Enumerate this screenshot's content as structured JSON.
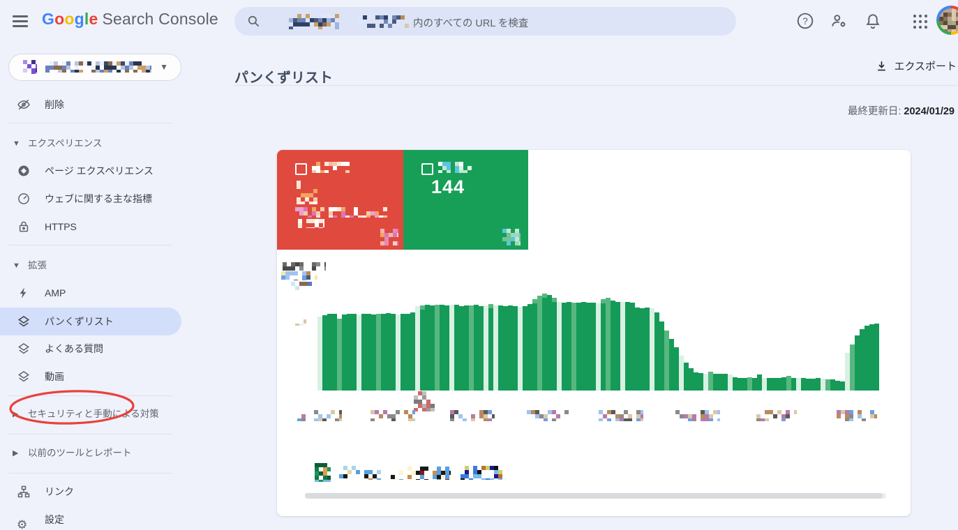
{
  "topbar": {
    "logo_letters": [
      {
        "ch": "G",
        "color": "#4285F4"
      },
      {
        "ch": "o",
        "color": "#EA4335"
      },
      {
        "ch": "o",
        "color": "#FBBC05"
      },
      {
        "ch": "g",
        "color": "#4285F4"
      },
      {
        "ch": "l",
        "color": "#34A853"
      },
      {
        "ch": "e",
        "color": "#EA4335"
      }
    ],
    "product_name": "Search Console",
    "search_placeholder_suffix": "内のすべての URL を検査",
    "search_property_redacted": true,
    "icons": [
      "help-icon",
      "user-settings-icon",
      "notifications-icon",
      "apps-grid-icon",
      "avatar"
    ]
  },
  "sidebar": {
    "property_name_redacted": true,
    "items": {
      "removals": "削除",
      "experience": "エクスペリエンス",
      "page_experience": "ページ エクスペリエンス",
      "core_web_vitals": "ウェブに関する主な指標",
      "https": "HTTPS",
      "enhancements": "拡張",
      "amp": "AMP",
      "breadcrumbs": "パンくずリスト",
      "faq": "よくある質問",
      "video": "動画",
      "security": "セキュリティと手動による対策",
      "legacy": "以前のツールとレポート",
      "links": "リンク",
      "settings": "設定"
    },
    "selected_item": "breadcrumbs",
    "annotation": {
      "shape": "hand-drawn ellipse around breadcrumbs item",
      "color": "#e8423a"
    }
  },
  "main": {
    "page_title": "パンくずリスト",
    "export_label": "エクスポート",
    "last_updated_label": "最終更新日:",
    "last_updated_value": "2024/01/29"
  },
  "cards": {
    "error": {
      "color": "#e0493d",
      "label_redacted": true,
      "count_redacted": true,
      "detail_text_redacted": true
    },
    "valid": {
      "color": "#179e57",
      "label_redacted": true,
      "count": "144"
    }
  },
  "chart_data": {
    "type": "bar",
    "description": "Daily count of valid breadcrumb items over time; chart legend, y-axis tick labels and x-axis date labels are pixelated (redacted) in the screenshot",
    "series": [
      {
        "name": "valid-items (legend pixelated)",
        "color": "#169a57"
      }
    ],
    "x_axis": {
      "tick_count": 8,
      "labels_redacted": true
    },
    "y_axis": {
      "labels_redacted": true
    },
    "baseline_y": 560,
    "bars": [
      [
        106,
        2
      ],
      [
        108,
        0
      ],
      [
        110,
        0
      ],
      [
        110,
        0
      ],
      [
        103,
        1
      ],
      [
        109,
        0
      ],
      [
        110,
        0
      ],
      [
        110,
        0
      ],
      [
        108,
        2
      ],
      [
        110,
        0
      ],
      [
        110,
        0
      ],
      [
        109,
        0
      ],
      [
        110,
        1
      ],
      [
        110,
        0
      ],
      [
        111,
        0
      ],
      [
        110,
        0
      ],
      [
        109,
        2
      ],
      [
        110,
        0
      ],
      [
        110,
        0
      ],
      [
        112,
        0
      ],
      [
        121,
        2
      ],
      [
        122,
        3
      ],
      [
        123,
        0
      ],
      [
        122,
        0
      ],
      [
        123,
        1
      ],
      [
        123,
        0
      ],
      [
        122,
        0
      ],
      [
        123,
        2
      ],
      [
        123,
        0
      ],
      [
        121,
        0
      ],
      [
        122,
        0
      ],
      [
        122,
        1
      ],
      [
        123,
        0
      ],
      [
        121,
        0
      ],
      [
        122,
        2
      ],
      [
        124,
        3
      ],
      [
        122,
        2
      ],
      [
        122,
        0
      ],
      [
        121,
        0
      ],
      [
        122,
        0
      ],
      [
        121,
        0
      ],
      [
        120,
        2
      ],
      [
        121,
        0
      ],
      [
        124,
        0
      ],
      [
        131,
        3
      ],
      [
        136,
        1
      ],
      [
        139,
        3
      ],
      [
        137,
        0
      ],
      [
        133,
        3
      ],
      [
        127,
        2
      ],
      [
        126,
        0
      ],
      [
        127,
        0
      ],
      [
        126,
        1
      ],
      [
        126,
        0
      ],
      [
        127,
        0
      ],
      [
        126,
        0
      ],
      [
        126,
        0
      ],
      [
        125,
        2
      ],
      [
        131,
        3
      ],
      [
        133,
        1
      ],
      [
        129,
        0
      ],
      [
        127,
        0
      ],
      [
        127,
        2
      ],
      [
        127,
        0
      ],
      [
        126,
        0
      ],
      [
        119,
        0
      ],
      [
        118,
        0
      ],
      [
        119,
        0
      ],
      [
        118,
        2
      ],
      [
        112,
        0
      ],
      [
        99,
        0
      ],
      [
        86,
        1
      ],
      [
        74,
        0
      ],
      [
        62,
        0
      ],
      [
        50,
        2
      ],
      [
        40,
        0
      ],
      [
        32,
        0
      ],
      [
        26,
        0
      ],
      [
        25,
        0
      ],
      [
        24,
        2
      ],
      [
        27,
        1
      ],
      [
        24,
        0
      ],
      [
        24,
        0
      ],
      [
        24,
        0
      ],
      [
        23,
        2
      ],
      [
        19,
        0
      ],
      [
        18,
        0
      ],
      [
        18,
        0
      ],
      [
        19,
        1
      ],
      [
        18,
        0
      ],
      [
        23,
        0
      ],
      [
        18,
        2
      ],
      [
        18,
        0
      ],
      [
        18,
        0
      ],
      [
        18,
        0
      ],
      [
        19,
        0
      ],
      [
        21,
        1
      ],
      [
        18,
        0
      ],
      [
        18,
        2
      ],
      [
        18,
        0
      ],
      [
        17,
        0
      ],
      [
        17,
        0
      ],
      [
        18,
        0
      ],
      [
        17,
        2
      ],
      [
        16,
        1
      ],
      [
        16,
        0
      ],
      [
        14,
        0
      ],
      [
        13,
        0
      ],
      [
        54,
        2
      ],
      [
        66,
        1
      ],
      [
        79,
        0
      ],
      [
        88,
        0
      ],
      [
        93,
        0
      ],
      [
        95,
        0
      ],
      [
        96,
        0
      ]
    ],
    "shade_colors": {
      "0": "#169a57",
      "1": "#57b77f",
      "2": "#d9f1e3",
      "3": "#169a57 with #57b77f cap"
    }
  }
}
